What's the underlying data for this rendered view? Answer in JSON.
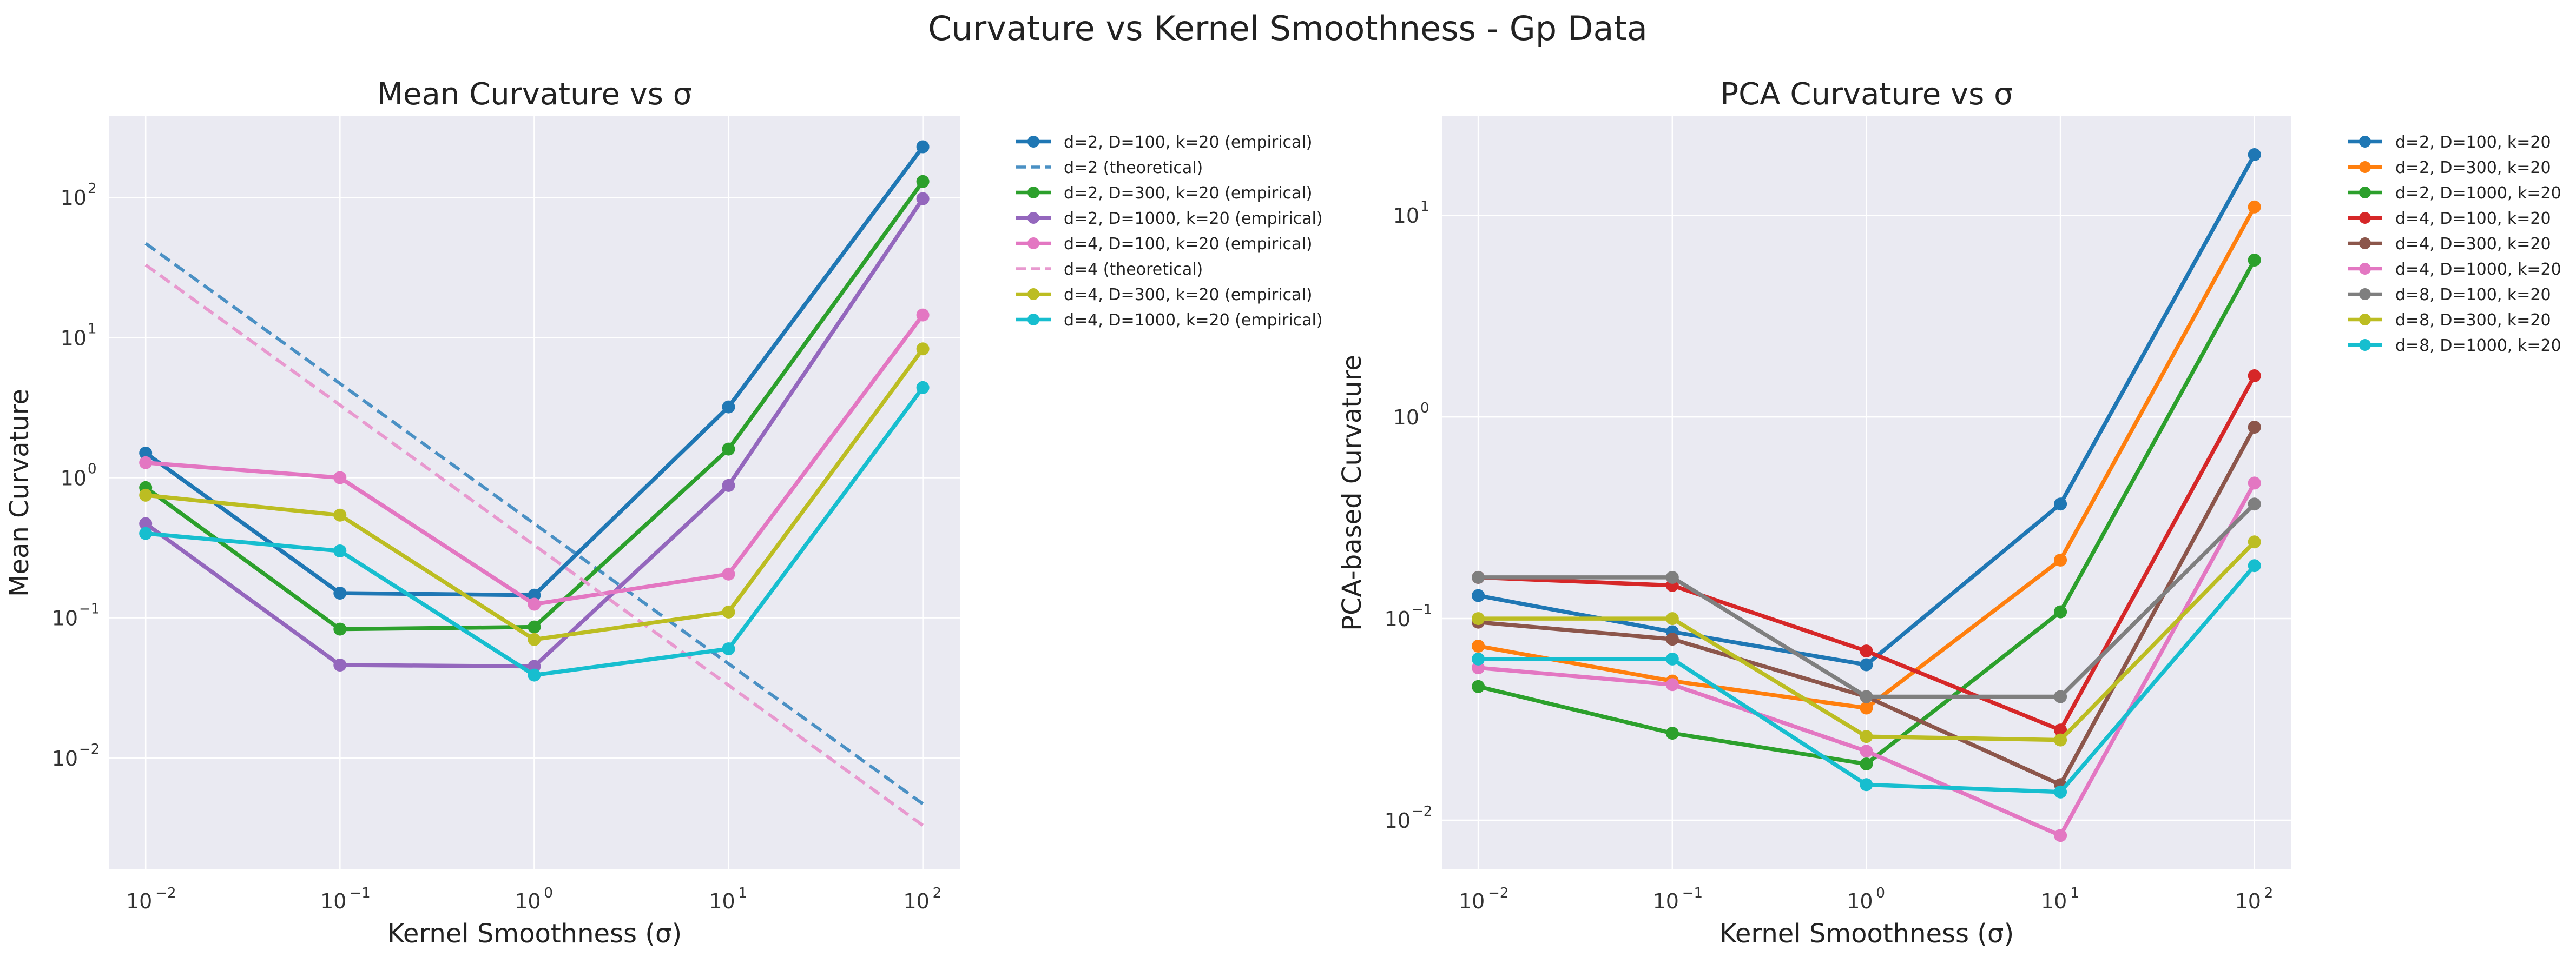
{
  "figure": {
    "title": "Curvature vs Kernel Smoothness - Gp Data"
  },
  "chart_data": [
    {
      "type": "line",
      "title": "Mean Curvature vs σ",
      "xlabel": "Kernel Smoothness (σ)",
      "ylabel": "Mean Curvature",
      "xscale": "log",
      "yscale": "log",
      "xlim": [
        0.0065,
        155
      ],
      "ylim": [
        0.0016,
        380
      ],
      "grid": true,
      "legend_position": "outside-right",
      "x": [
        0.01,
        0.1,
        1,
        10,
        100
      ],
      "xticks": [
        {
          "base": "10",
          "exp": "−2",
          "value": 0.01
        },
        {
          "base": "10",
          "exp": "−1",
          "value": 0.1
        },
        {
          "base": "10",
          "exp": "0",
          "value": 1
        },
        {
          "base": "10",
          "exp": "1",
          "value": 10
        },
        {
          "base": "10",
          "exp": "2",
          "value": 100
        }
      ],
      "yticks": [
        {
          "base": "10",
          "exp": "−2",
          "value": 0.01
        },
        {
          "base": "10",
          "exp": "−1",
          "value": 0.1
        },
        {
          "base": "10",
          "exp": "0",
          "value": 1
        },
        {
          "base": "10",
          "exp": "1",
          "value": 10
        },
        {
          "base": "10",
          "exp": "2",
          "value": 100
        }
      ],
      "series": [
        {
          "name": "d=2, D=100, k=20 (empirical)",
          "color": "#1f77b4",
          "style": "solid-marker",
          "values": [
            1.5,
            0.15,
            0.145,
            3.2,
            230
          ]
        },
        {
          "name": "d=2 (theoretical)",
          "color": "#4a90c4",
          "style": "dashed",
          "values": [
            47,
            4.7,
            0.47,
            0.047,
            0.0047
          ]
        },
        {
          "name": "d=2, D=300, k=20 (empirical)",
          "color": "#2ca02c",
          "style": "solid-marker",
          "values": [
            0.85,
            0.083,
            0.086,
            1.6,
            130
          ]
        },
        {
          "name": "d=2, D=1000, k=20 (empirical)",
          "color": "#9467bd",
          "style": "solid-marker",
          "values": [
            0.47,
            0.046,
            0.045,
            0.88,
            98
          ]
        },
        {
          "name": "d=4, D=100, k=20 (empirical)",
          "color": "#e377c2",
          "style": "solid-marker",
          "values": [
            1.28,
            1.0,
            0.125,
            0.205,
            14.5
          ]
        },
        {
          "name": "d=4 (theoretical)",
          "color": "#e899cf",
          "style": "dashed",
          "values": [
            33,
            3.3,
            0.33,
            0.033,
            0.0033
          ]
        },
        {
          "name": "d=4, D=300, k=20 (empirical)",
          "color": "#bcbd22",
          "style": "solid-marker",
          "values": [
            0.75,
            0.54,
            0.07,
            0.11,
            8.3
          ]
        },
        {
          "name": "d=4, D=1000, k=20 (empirical)",
          "color": "#17becf",
          "style": "solid-marker",
          "values": [
            0.4,
            0.3,
            0.039,
            0.06,
            4.4
          ]
        }
      ]
    },
    {
      "type": "line",
      "title": "PCA Curvature vs σ",
      "xlabel": "Kernel Smoothness (σ)",
      "ylabel": "PCA-based Curvature",
      "xscale": "log",
      "yscale": "log",
      "xlim": [
        0.0065,
        155
      ],
      "ylim": [
        0.0057,
        31
      ],
      "grid": true,
      "legend_position": "outside-right",
      "x": [
        0.01,
        0.1,
        1,
        10,
        100
      ],
      "xticks": [
        {
          "base": "10",
          "exp": "−2",
          "value": 0.01
        },
        {
          "base": "10",
          "exp": "−1",
          "value": 0.1
        },
        {
          "base": "10",
          "exp": "0",
          "value": 1
        },
        {
          "base": "10",
          "exp": "1",
          "value": 10
        },
        {
          "base": "10",
          "exp": "2",
          "value": 100
        }
      ],
      "yticks": [
        {
          "base": "10",
          "exp": "−2",
          "value": 0.01
        },
        {
          "base": "10",
          "exp": "−1",
          "value": 0.1
        },
        {
          "base": "10",
          "exp": "0",
          "value": 1
        },
        {
          "base": "10",
          "exp": "1",
          "value": 10
        }
      ],
      "series": [
        {
          "name": "d=2, D=100, k=20",
          "color": "#1f77b4",
          "style": "solid-marker",
          "values": [
            0.13,
            0.086,
            0.059,
            0.37,
            20
          ]
        },
        {
          "name": "d=2, D=300, k=20",
          "color": "#ff7f0e",
          "style": "solid-marker",
          "values": [
            0.073,
            0.049,
            0.036,
            0.195,
            11
          ]
        },
        {
          "name": "d=2, D=1000, k=20",
          "color": "#2ca02c",
          "style": "solid-marker",
          "values": [
            0.046,
            0.027,
            0.019,
            0.108,
            6.0
          ]
        },
        {
          "name": "d=4, D=100, k=20",
          "color": "#d62728",
          "style": "solid-marker",
          "values": [
            0.16,
            0.146,
            0.069,
            0.028,
            1.6
          ]
        },
        {
          "name": "d=4, D=300, k=20",
          "color": "#8c564b",
          "style": "solid-marker",
          "values": [
            0.096,
            0.079,
            0.041,
            0.015,
            0.89
          ]
        },
        {
          "name": "d=4, D=1000, k=20",
          "color": "#e377c2",
          "style": "solid-marker",
          "values": [
            0.057,
            0.047,
            0.022,
            0.0084,
            0.47
          ]
        },
        {
          "name": "d=8, D=100, k=20",
          "color": "#7f7f7f",
          "style": "solid-marker",
          "values": [
            0.16,
            0.16,
            0.041,
            0.041,
            0.37
          ]
        },
        {
          "name": "d=8, D=300, k=20",
          "color": "#bcbd22",
          "style": "solid-marker",
          "values": [
            0.1,
            0.1,
            0.026,
            0.025,
            0.24
          ]
        },
        {
          "name": "d=8, D=1000, k=20",
          "color": "#17becf",
          "style": "solid-marker",
          "values": [
            0.063,
            0.063,
            0.015,
            0.0138,
            0.183
          ]
        }
      ]
    }
  ]
}
